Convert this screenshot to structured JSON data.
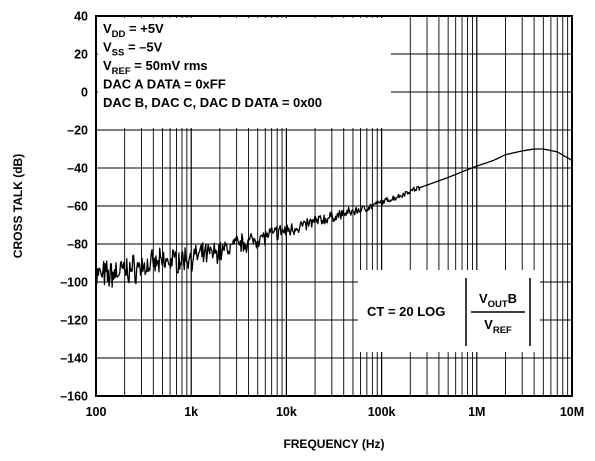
{
  "chart_data": {
    "type": "line",
    "x_scale": "log",
    "xlabel": "FREQUENCY (Hz)",
    "ylabel": "CROSS TALK (dB)",
    "xlim": [
      100,
      10000000
    ],
    "ylim": [
      -160,
      40
    ],
    "grid": true,
    "x_ticks": [
      {
        "value": 100,
        "label": "100"
      },
      {
        "value": 1000,
        "label": "1k"
      },
      {
        "value": 10000,
        "label": "10k"
      },
      {
        "value": 100000,
        "label": "100k"
      },
      {
        "value": 1000000,
        "label": "1M"
      },
      {
        "value": 10000000,
        "label": "10M"
      }
    ],
    "y_ticks": [
      {
        "value": 40,
        "label": "40"
      },
      {
        "value": 20,
        "label": "20"
      },
      {
        "value": 0,
        "label": "0"
      },
      {
        "value": -20,
        "label": "–20"
      },
      {
        "value": -40,
        "label": "–40"
      },
      {
        "value": -60,
        "label": "–60"
      },
      {
        "value": -80,
        "label": "–80"
      },
      {
        "value": -100,
        "label": "–100"
      },
      {
        "value": -120,
        "label": "–120"
      },
      {
        "value": -140,
        "label": "–140"
      },
      {
        "value": -160,
        "label": "–160"
      }
    ],
    "conditions": [
      {
        "main": "V",
        "sub": "DD",
        "rest": " = +5V"
      },
      {
        "main": "V",
        "sub": "SS",
        "rest": " = –5V"
      },
      {
        "main": "V",
        "sub": "REF",
        "rest": " = 50mV rms"
      },
      {
        "main": "DAC A DATA = 0xFF",
        "sub": "",
        "rest": ""
      },
      {
        "main": "DAC B, DAC C, DAC D DATA = 0x00",
        "sub": "",
        "rest": ""
      }
    ],
    "formula": {
      "lhs": "CT = 20 LOG",
      "num_main": "V",
      "num_sub": "OUT",
      "num_rest": "B",
      "den_main": "V",
      "den_sub": "REF"
    },
    "series": [
      {
        "x": [
          100,
          130,
          160,
          200,
          250,
          300,
          400,
          500,
          600,
          800,
          1000,
          1300,
          1600,
          2000,
          2500,
          3000,
          4000,
          5000,
          6000,
          8000,
          10000,
          13000,
          16000,
          20000,
          25000,
          30000,
          40000,
          50000,
          60000,
          80000,
          100000,
          150000,
          200000,
          300000,
          500000,
          700000,
          1000000,
          1500000,
          2000000,
          3000000,
          4000000,
          5000000,
          7000000,
          10000000
        ],
        "y": [
          -96,
          -97,
          -95,
          -94,
          -93,
          -92,
          -91,
          -90,
          -89,
          -88,
          -87,
          -86,
          -85,
          -84,
          -82,
          -80,
          -79,
          -77,
          -76,
          -74,
          -73,
          -71,
          -70,
          -68,
          -67,
          -66,
          -64,
          -63,
          -62,
          -60,
          -58,
          -55,
          -52,
          -49,
          -45,
          -42,
          -39,
          -36,
          -33,
          -31,
          -30,
          -30,
          -31.5,
          -36
        ]
      }
    ]
  }
}
